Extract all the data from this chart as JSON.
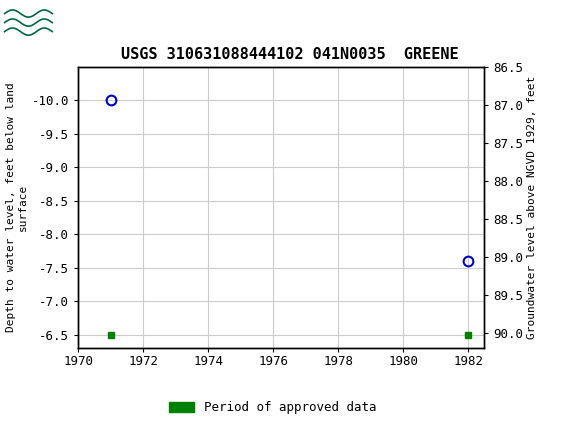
{
  "title": "USGS 310631088444102 041N0035  GREENE",
  "header_color": "#006644",
  "ylabel_left": "Depth to water level, feet below land\nsurface",
  "ylabel_right": "Groundwater level above NGVD 1929, feet",
  "xlim": [
    1970,
    1982.5
  ],
  "ylim_left": [
    -10.5,
    -6.3
  ],
  "ylim_right": [
    86.5,
    90.2
  ],
  "yticks_left": [
    -10.0,
    -9.5,
    -9.0,
    -8.5,
    -8.0,
    -7.5,
    -7.0,
    -6.5
  ],
  "yticks_right": [
    86.5,
    87.0,
    87.5,
    88.0,
    88.5,
    89.0,
    89.5,
    90.0
  ],
  "xticks": [
    1970,
    1972,
    1974,
    1976,
    1978,
    1980,
    1982
  ],
  "circle_points_x": [
    1971.0,
    1982.0
  ],
  "circle_points_y": [
    -10.0,
    -7.6
  ],
  "square_points_x": [
    1971.0,
    1982.0
  ],
  "square_points_y": [
    -6.5,
    -6.5
  ],
  "circle_color": "#0000cc",
  "square_color": "#008000",
  "legend_label": "Period of approved data",
  "legend_color": "#008000",
  "bg_color": "#ffffff",
  "grid_color": "#cccccc",
  "font_family": "monospace",
  "title_fontsize": 11,
  "tick_fontsize": 9,
  "ylabel_fontsize": 8
}
